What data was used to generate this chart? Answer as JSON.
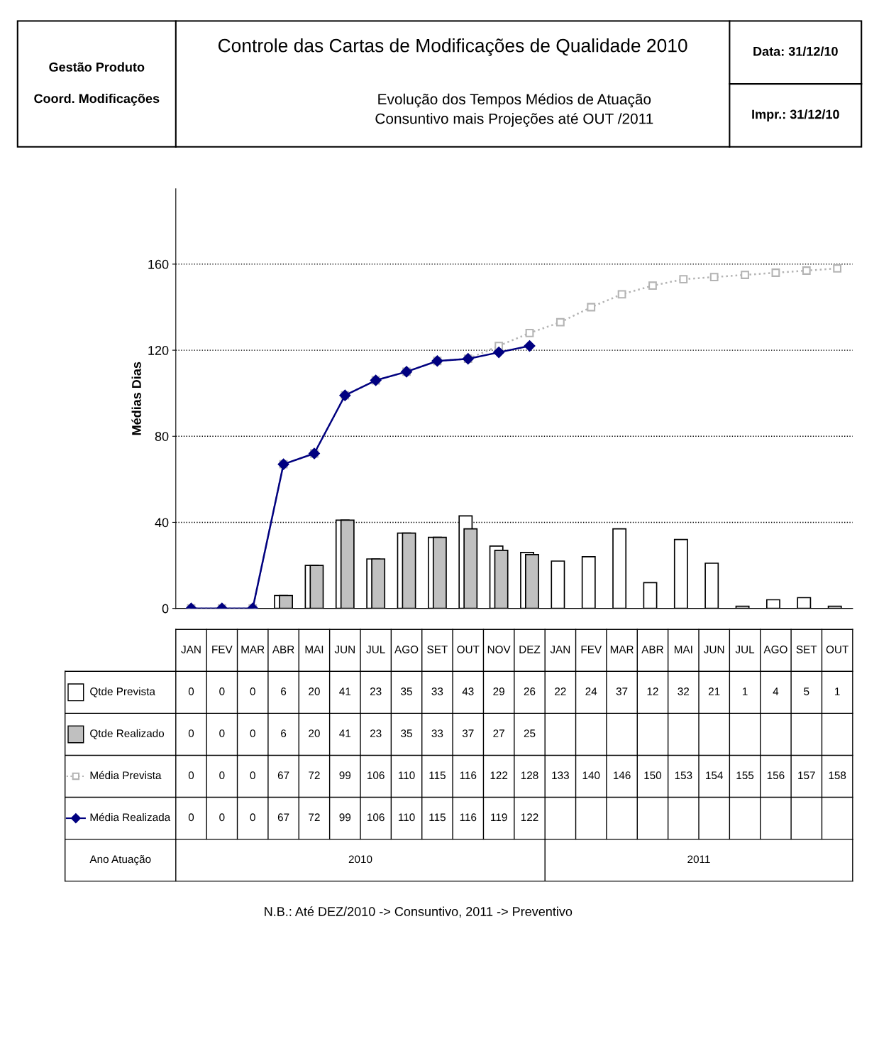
{
  "chart_data": {
    "type": "bar",
    "title": "Controle das Cartas de Modificações de Qualidade 2010",
    "subtitle": "Evolução dos Tempos Médios de Atuação\nConsuntivo mais Projeções até OUT /2011",
    "ylabel": "Médias Dias",
    "categories": [
      "JAN",
      "FEV",
      "MAR",
      "ABR",
      "MAI",
      "JUN",
      "JUL",
      "AGO",
      "SET",
      "OUT",
      "NOV",
      "DEZ",
      "JAN",
      "FEV",
      "MAR",
      "ABR",
      "MAI",
      "JUN",
      "JUL",
      "AGO",
      "SET",
      "OUT"
    ],
    "series": [
      {
        "name": "Qtde Prevista",
        "color": "#ffffff",
        "values": [
          0,
          0,
          0,
          6,
          20,
          41,
          23,
          35,
          33,
          43,
          29,
          26,
          22,
          24,
          37,
          12,
          32,
          21,
          1,
          4,
          5,
          1
        ]
      },
      {
        "name": "Qtde Realizado",
        "color": "#c0c0c0",
        "values": [
          0,
          0,
          0,
          6,
          20,
          41,
          23,
          35,
          33,
          37,
          27,
          25,
          null,
          null,
          null,
          null,
          null,
          null,
          null,
          null,
          null,
          null
        ]
      },
      {
        "name": "Média Prevista",
        "type": "line",
        "color": "#b4b4b4",
        "marker": "square",
        "line_style": "dotted",
        "values": [
          0,
          0,
          0,
          67,
          72,
          99,
          106,
          110,
          115,
          116,
          122,
          128,
          133,
          140,
          146,
          150,
          153,
          154,
          155,
          156,
          157,
          158
        ]
      },
      {
        "name": "Média Realizada",
        "type": "line",
        "color": "#000080",
        "marker": "diamond",
        "line_style": "solid",
        "values": [
          0,
          0,
          0,
          67,
          72,
          99,
          106,
          110,
          115,
          116,
          119,
          122,
          null,
          null,
          null,
          null,
          null,
          null,
          null,
          null,
          null,
          null
        ]
      }
    ],
    "ylim": [
      0,
      195
    ],
    "yticks": [
      0,
      40,
      80,
      120,
      160
    ],
    "grid": "y",
    "legend": "bottom left",
    "data_labels": true,
    "annotations": [
      "Gestão Produto",
      "Coord. Modificações",
      "Data: 31/12/10",
      "Impr.: 31/12/10",
      "Ano Atuação",
      "2010",
      "2011",
      "N.B.: Até DEZ/2010 -> Consuntivo, 2011 -> Preventivo"
    ]
  }
}
